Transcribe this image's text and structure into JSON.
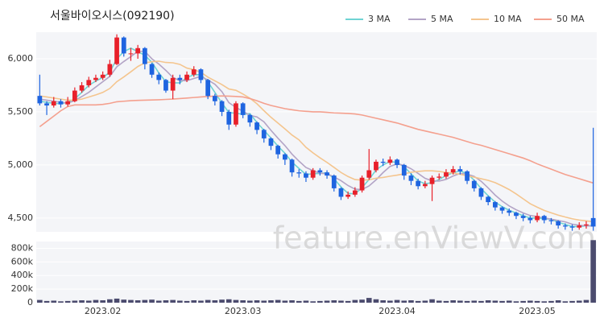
{
  "watermark": "feature.enViewV.com",
  "chart_data": [
    {
      "type": "candlestick",
      "title": "서울바이오시스(092190)",
      "open": [
        5650,
        5580,
        5560,
        5600,
        5570,
        5600,
        5700,
        5750,
        5800,
        5820,
        5850,
        5950,
        6200,
        6050,
        6050,
        6100,
        5950,
        5850,
        5800,
        5700,
        5820,
        5800,
        5850,
        5900,
        5800,
        5650,
        5600,
        5500,
        5380,
        5580,
        5470,
        5400,
        5330,
        5250,
        5180,
        5100,
        5050,
        4930,
        4920,
        4880,
        4950,
        4930,
        4900,
        4780,
        4700,
        4720,
        4760,
        4880,
        4950,
        5030,
        5020,
        5050,
        5000,
        4900,
        4850,
        4800,
        4820,
        4880,
        4890,
        4930,
        4960,
        4940,
        4850,
        4780,
        4700,
        4650,
        4600,
        4570,
        4550,
        4520,
        4500,
        4480,
        4520,
        4480,
        4470,
        4430,
        4420,
        4410,
        4430,
        4500
      ],
      "high": [
        5850,
        5600,
        5640,
        5620,
        5640,
        5730,
        5780,
        5830,
        5850,
        5880,
        5990,
        6230,
        6210,
        6100,
        6130,
        6110,
        5960,
        5870,
        5810,
        5850,
        5850,
        5880,
        5930,
        5910,
        5810,
        5670,
        5610,
        5520,
        5600,
        5590,
        5480,
        5410,
        5340,
        5260,
        5190,
        5110,
        5060,
        4960,
        4940,
        4970,
        4970,
        4950,
        4910,
        4790,
        4750,
        4790,
        4900,
        5150,
        5050,
        5060,
        5080,
        5060,
        5010,
        4920,
        4870,
        4850,
        4900,
        4920,
        4960,
        4990,
        4990,
        4950,
        4860,
        4790,
        4710,
        4660,
        4610,
        4590,
        4560,
        4540,
        4520,
        4550,
        4530,
        4500,
        4480,
        4450,
        4440,
        4460,
        4470,
        5350
      ],
      "low": [
        5560,
        5470,
        5540,
        5540,
        5550,
        5590,
        5680,
        5730,
        5780,
        5800,
        5830,
        5940,
        6020,
        5980,
        6000,
        5900,
        5820,
        5760,
        5680,
        5620,
        5760,
        5780,
        5830,
        5770,
        5620,
        5560,
        5460,
        5330,
        5360,
        5440,
        5360,
        5290,
        5210,
        5140,
        5060,
        5000,
        4890,
        4880,
        4840,
        4860,
        4900,
        4870,
        4750,
        4670,
        4680,
        4700,
        4740,
        4860,
        4930,
        4990,
        5000,
        4970,
        4860,
        4810,
        4770,
        4780,
        4660,
        4860,
        4870,
        4910,
        4910,
        4820,
        4750,
        4670,
        4620,
        4570,
        4540,
        4520,
        4490,
        4470,
        4450,
        4460,
        4450,
        4440,
        4400,
        4390,
        4380,
        4390,
        4400,
        4380
      ],
      "close": [
        5580,
        5560,
        5600,
        5570,
        5600,
        5700,
        5750,
        5800,
        5820,
        5850,
        5950,
        6200,
        6050,
        6050,
        6100,
        5950,
        5850,
        5800,
        5700,
        5820,
        5800,
        5850,
        5900,
        5800,
        5650,
        5600,
        5500,
        5380,
        5580,
        5470,
        5400,
        5330,
        5250,
        5180,
        5100,
        5050,
        4930,
        4920,
        4880,
        4950,
        4930,
        4900,
        4780,
        4700,
        4720,
        4760,
        4880,
        4950,
        5030,
        5020,
        5050,
        5000,
        4900,
        4850,
        4800,
        4820,
        4880,
        4890,
        4930,
        4960,
        4940,
        4850,
        4780,
        4700,
        4650,
        4600,
        4570,
        4550,
        4520,
        4500,
        4480,
        4520,
        4480,
        4470,
        4430,
        4420,
        4410,
        4430,
        4440,
        4420
      ],
      "up_color": "#e8202a",
      "down_color": "#1e64e0",
      "series": [
        {
          "name": "3 MA",
          "color": "#6fd3d3",
          "values": [
            5600,
            5590,
            5580,
            5577,
            5590,
            5623,
            5683,
            5750,
            5790,
            5823,
            5873,
            6000,
            6067,
            6100,
            6067,
            6033,
            5967,
            5867,
            5783,
            5773,
            5773,
            5823,
            5850,
            5850,
            5783,
            5683,
            5583,
            5493,
            5487,
            5477,
            5483,
            5400,
            5327,
            5253,
            5177,
            5110,
            5027,
            4967,
            4910,
            4917,
            4920,
            4927,
            4870,
            4793,
            4733,
            4727,
            4787,
            4863,
            4953,
            5000,
            5033,
            5023,
            4983,
            4917,
            4850,
            4823,
            4833,
            4863,
            4900,
            4927,
            4943,
            4917,
            4857,
            4777,
            4710,
            4650,
            4607,
            4573,
            4547,
            4523,
            4500,
            4500,
            4493,
            4490,
            4460,
            4440,
            4420,
            4420,
            4427,
            4430
          ]
        },
        {
          "name": "5 MA",
          "color": "#b3a4c6",
          "values": [
            5620,
            5610,
            5600,
            5590,
            5582,
            5606,
            5644,
            5684,
            5734,
            5784,
            5834,
            5924,
            5974,
            6020,
            6070,
            6070,
            6000,
            5950,
            5890,
            5824,
            5794,
            5794,
            5814,
            5834,
            5800,
            5760,
            5690,
            5586,
            5542,
            5506,
            5466,
            5452,
            5406,
            5326,
            5252,
            5182,
            5102,
            5036,
            4976,
            4946,
            4922,
            4916,
            4888,
            4852,
            4806,
            4772,
            4768,
            4802,
            4860,
            4928,
            4986,
            5010,
            4996,
            4964,
            4920,
            4874,
            4850,
            4848,
            4864,
            4896,
            4920,
            4914,
            4892,
            4846,
            4784,
            4716,
            4660,
            4614,
            4578,
            4548,
            4524,
            4514,
            4500,
            4490,
            4476,
            4464,
            4442,
            4432,
            4426,
            4424
          ]
        },
        {
          "name": "10 MA",
          "color": "#f4c58e",
          "values": [
            5650,
            5640,
            5630,
            5620,
            5610,
            5610,
            5620,
            5640,
            5660,
            5683,
            5720,
            5784,
            5829,
            5877,
            5927,
            5962,
            5972,
            5977,
            5965,
            5962,
            5947,
            5912,
            5897,
            5872,
            5827,
            5792,
            5757,
            5715,
            5703,
            5668,
            5628,
            5576,
            5511,
            5449,
            5394,
            5339,
            5282,
            5236,
            5166,
            5114,
            5067,
            5024,
            4977,
            4929,
            4891,
            4862,
            4857,
            4860,
            4875,
            4882,
            4894,
            4904,
            4916,
            4931,
            4939,
            4945,
            4945,
            4939,
            4929,
            4923,
            4912,
            4897,
            4885,
            4870,
            4855,
            4833,
            4802,
            4768,
            4727,
            4681,
            4635,
            4602,
            4572,
            4549,
            4527,
            4509,
            4493,
            4481,
            4473,
            4465
          ]
        },
        {
          "name": "50 MA",
          "color": "#f4a08e",
          "values": [
            5360,
            5410,
            5460,
            5510,
            5550,
            5565,
            5565,
            5565,
            5565,
            5570,
            5580,
            5595,
            5600,
            5605,
            5608,
            5610,
            5612,
            5614,
            5617,
            5620,
            5625,
            5630,
            5635,
            5640,
            5645,
            5648,
            5650,
            5648,
            5645,
            5640,
            5625,
            5605,
            5580,
            5560,
            5545,
            5530,
            5520,
            5510,
            5505,
            5500,
            5500,
            5495,
            5490,
            5488,
            5485,
            5480,
            5470,
            5455,
            5440,
            5425,
            5410,
            5395,
            5375,
            5355,
            5335,
            5320,
            5305,
            5290,
            5275,
            5260,
            5240,
            5220,
            5200,
            5185,
            5165,
            5145,
            5125,
            5105,
            5085,
            5065,
            5040,
            5010,
            4985,
            4960,
            4935,
            4910,
            4890,
            4870,
            4850,
            4830
          ]
        }
      ],
      "ylim": [
        4370,
        6250
      ],
      "yticks": [
        {
          "value": 4500,
          "label": "4,500"
        },
        {
          "value": 5000,
          "label": "5,000"
        },
        {
          "value": 5500,
          "label": "5,500"
        },
        {
          "value": 6000,
          "label": "6,000"
        }
      ],
      "grid": true,
      "legend": "top-right"
    },
    {
      "type": "bar",
      "color": "#4b4b6e",
      "categories": [
        null,
        null,
        null,
        null,
        null,
        null,
        null,
        null,
        null,
        "2023.02",
        null,
        null,
        null,
        null,
        null,
        null,
        null,
        null,
        null,
        null,
        null,
        null,
        null,
        null,
        null,
        null,
        null,
        null,
        null,
        "2023.03",
        null,
        null,
        null,
        null,
        null,
        null,
        null,
        null,
        null,
        null,
        null,
        null,
        null,
        null,
        null,
        null,
        null,
        null,
        null,
        null,
        null,
        "2023.04",
        null,
        null,
        null,
        null,
        null,
        null,
        null,
        null,
        null,
        null,
        null,
        null,
        null,
        null,
        null,
        null,
        null,
        null,
        null,
        "2023.05",
        null,
        null,
        null,
        null,
        null,
        null,
        null,
        null
      ],
      "values": [
        40000,
        25000,
        30000,
        20000,
        25000,
        30000,
        35000,
        30000,
        40000,
        35000,
        50000,
        60000,
        45000,
        40000,
        35000,
        40000,
        45000,
        30000,
        35000,
        40000,
        30000,
        25000,
        35000,
        30000,
        40000,
        35000,
        45000,
        50000,
        40000,
        35000,
        30000,
        35000,
        30000,
        35000,
        40000,
        30000,
        35000,
        25000,
        30000,
        20000,
        25000,
        30000,
        35000,
        30000,
        25000,
        40000,
        45000,
        70000,
        50000,
        35000,
        30000,
        40000,
        30000,
        35000,
        25000,
        30000,
        50000,
        30000,
        25000,
        35000,
        30000,
        25000,
        30000,
        25000,
        35000,
        30000,
        25000,
        30000,
        20000,
        25000,
        30000,
        25000,
        20000,
        25000,
        35000,
        20000,
        25000,
        30000,
        40000,
        920000
      ],
      "ylim": [
        0,
        900000
      ],
      "yticks": [
        0,
        {
          "value": 200000,
          "label": "200k"
        },
        {
          "value": 400000,
          "label": "400k"
        },
        {
          "value": 600000,
          "label": "600k"
        },
        {
          "value": 800000,
          "label": "800k"
        }
      ],
      "grid": true
    }
  ]
}
